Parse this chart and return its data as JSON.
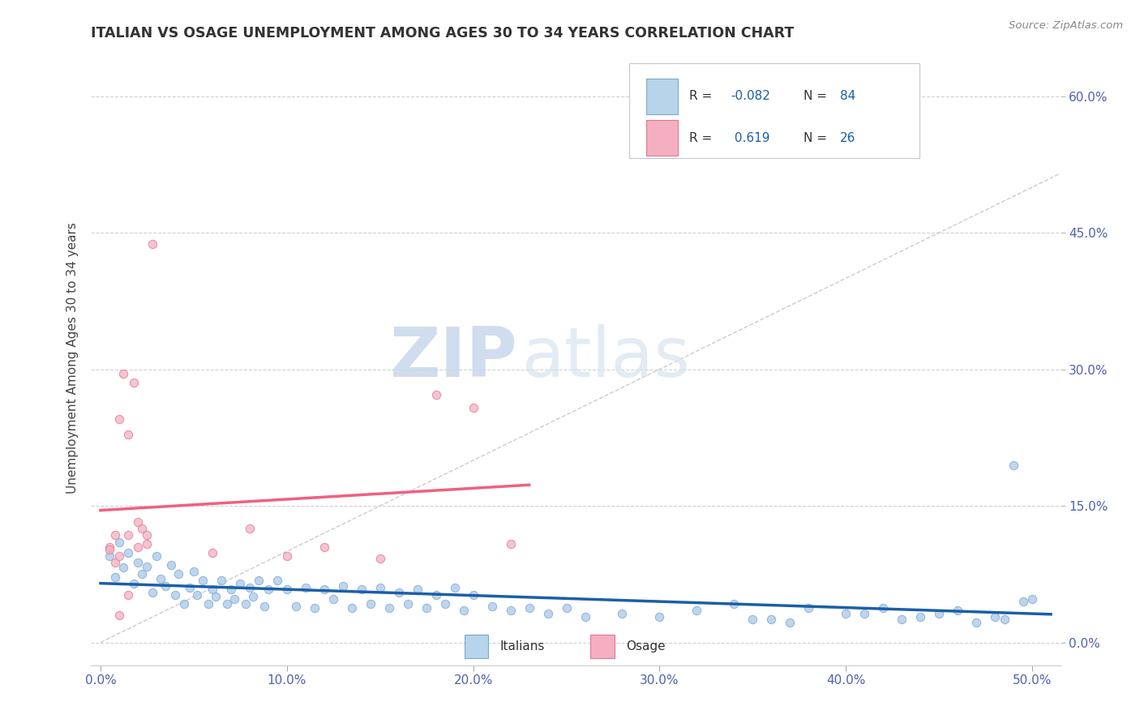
{
  "title": "ITALIAN VS OSAGE UNEMPLOYMENT AMONG AGES 30 TO 34 YEARS CORRELATION CHART",
  "source_text": "Source: ZipAtlas.com",
  "ylabel": "Unemployment Among Ages 30 to 34 years",
  "xlim": [
    -0.005,
    0.515
  ],
  "ylim": [
    -0.025,
    0.65
  ],
  "xticks": [
    0.0,
    0.1,
    0.2,
    0.3,
    0.4,
    0.5
  ],
  "xtick_labels": [
    "0.0%",
    "10.0%",
    "20.0%",
    "30.0%",
    "40.0%",
    "50.0%"
  ],
  "yticks": [
    0.0,
    0.15,
    0.3,
    0.45,
    0.6
  ],
  "ytick_labels": [
    "0.0%",
    "15.0%",
    "30.0%",
    "45.0%",
    "60.0%"
  ],
  "legend_r_italian": "-0.082",
  "legend_n_italian": "84",
  "legend_r_osage": "0.619",
  "legend_n_osage": "26",
  "italian_color": "#aac8e8",
  "italian_edge": "#7aaad0",
  "osage_color": "#f4b0c0",
  "osage_edge": "#e07898",
  "italian_line_color": "#1a5fa8",
  "osage_line_color": "#f06080",
  "ref_line_color": "#c0c0c0",
  "title_color": "#333333",
  "tick_color": "#5060b0",
  "watermark_zip": "ZIP",
  "watermark_atlas": "atlas",
  "background_color": "#ffffff",
  "grid_color": "#cccccc",
  "italian_x": [
    0.005,
    0.008,
    0.01,
    0.012,
    0.015,
    0.018,
    0.02,
    0.022,
    0.025,
    0.028,
    0.03,
    0.032,
    0.035,
    0.038,
    0.04,
    0.042,
    0.045,
    0.048,
    0.05,
    0.052,
    0.055,
    0.058,
    0.06,
    0.062,
    0.065,
    0.068,
    0.07,
    0.072,
    0.075,
    0.078,
    0.08,
    0.082,
    0.085,
    0.088,
    0.09,
    0.095,
    0.1,
    0.105,
    0.11,
    0.115,
    0.12,
    0.125,
    0.13,
    0.135,
    0.14,
    0.145,
    0.15,
    0.155,
    0.16,
    0.165,
    0.17,
    0.175,
    0.18,
    0.185,
    0.19,
    0.195,
    0.2,
    0.21,
    0.22,
    0.23,
    0.24,
    0.25,
    0.26,
    0.28,
    0.3,
    0.32,
    0.34,
    0.36,
    0.38,
    0.4,
    0.42,
    0.44,
    0.46,
    0.48,
    0.49,
    0.5,
    0.35,
    0.37,
    0.41,
    0.43,
    0.45,
    0.47,
    0.485,
    0.495
  ],
  "italian_y": [
    0.095,
    0.072,
    0.11,
    0.082,
    0.098,
    0.065,
    0.088,
    0.075,
    0.083,
    0.055,
    0.095,
    0.07,
    0.062,
    0.085,
    0.052,
    0.075,
    0.042,
    0.06,
    0.078,
    0.052,
    0.068,
    0.042,
    0.058,
    0.05,
    0.068,
    0.042,
    0.058,
    0.048,
    0.065,
    0.042,
    0.06,
    0.05,
    0.068,
    0.04,
    0.058,
    0.068,
    0.058,
    0.04,
    0.06,
    0.038,
    0.058,
    0.048,
    0.062,
    0.038,
    0.058,
    0.042,
    0.06,
    0.038,
    0.055,
    0.042,
    0.058,
    0.038,
    0.052,
    0.042,
    0.06,
    0.035,
    0.052,
    0.04,
    0.035,
    0.038,
    0.032,
    0.038,
    0.028,
    0.032,
    0.028,
    0.035,
    0.042,
    0.025,
    0.038,
    0.032,
    0.038,
    0.028,
    0.035,
    0.028,
    0.195,
    0.048,
    0.025,
    0.022,
    0.032,
    0.025,
    0.032,
    0.022,
    0.025,
    0.045
  ],
  "osage_x": [
    0.005,
    0.008,
    0.01,
    0.012,
    0.015,
    0.018,
    0.02,
    0.022,
    0.025,
    0.028,
    0.01,
    0.015,
    0.02,
    0.025,
    0.06,
    0.08,
    0.1,
    0.12,
    0.15,
    0.18,
    0.2,
    0.22,
    0.005,
    0.01,
    0.015,
    0.008
  ],
  "osage_y": [
    0.105,
    0.088,
    0.095,
    0.295,
    0.118,
    0.285,
    0.132,
    0.125,
    0.108,
    0.438,
    0.245,
    0.228,
    0.105,
    0.118,
    0.098,
    0.125,
    0.095,
    0.105,
    0.092,
    0.272,
    0.258,
    0.108,
    0.102,
    0.03,
    0.052,
    0.118
  ]
}
